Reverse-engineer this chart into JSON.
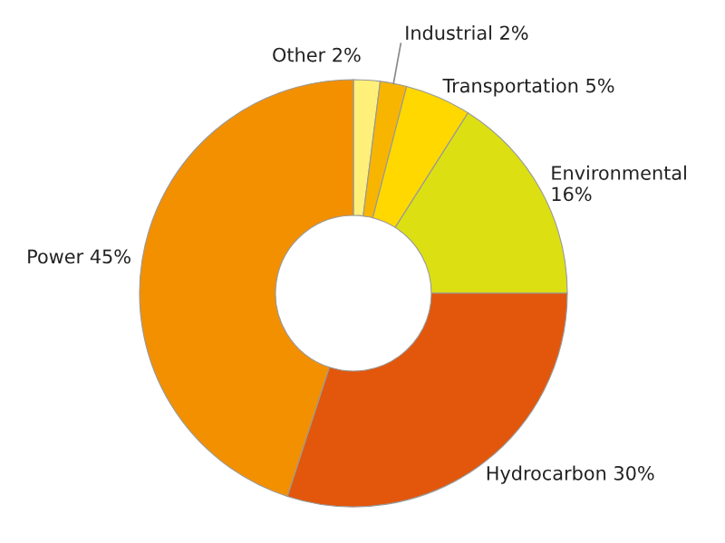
{
  "chart_data": {
    "type": "donut",
    "categories": [
      "Other",
      "Industrial",
      "Transportation",
      "Environmental",
      "Hydrocarbon",
      "Power"
    ],
    "values": [
      2,
      2,
      5,
      16,
      30,
      45
    ],
    "value_labels": [
      "2%",
      "2%",
      "5%",
      "16%",
      "30%",
      "45%"
    ],
    "colors": [
      "#fff07a",
      "#f7b500",
      "#ffd800",
      "#dce012",
      "#e2570c",
      "#f39000"
    ]
  }
}
